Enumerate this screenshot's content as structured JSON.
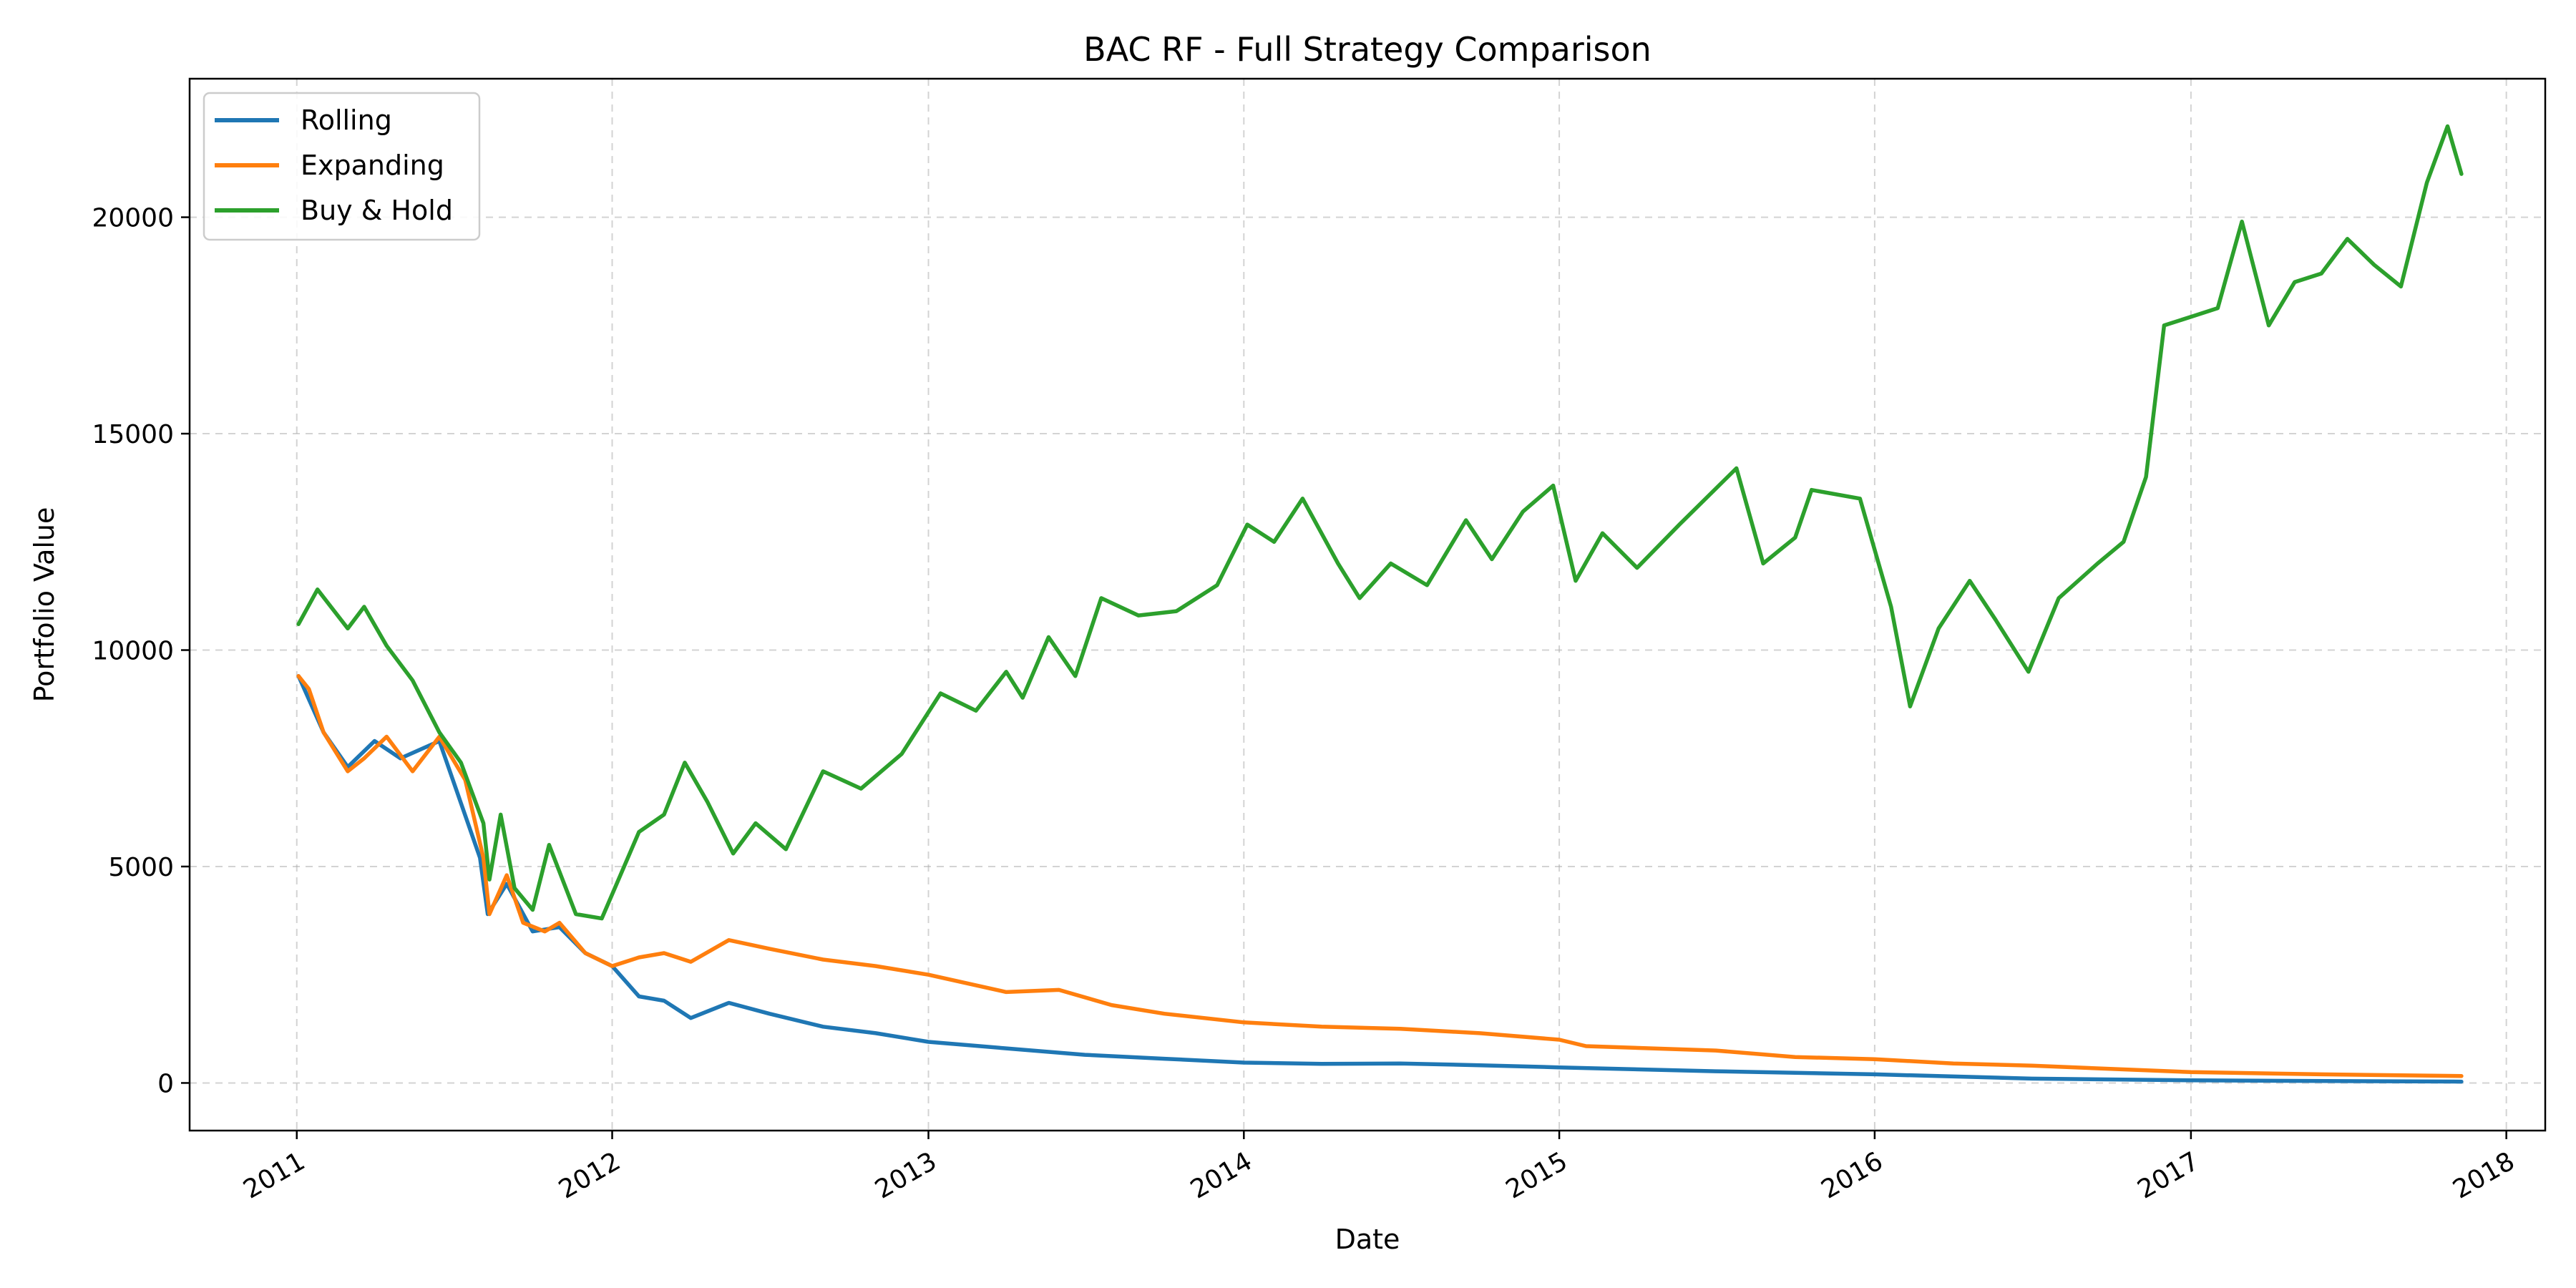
{
  "chart_data": {
    "type": "line",
    "title": "BAC RF - Full Strategy Comparison",
    "xlabel": "Date",
    "ylabel": "Portfolio Value",
    "x_ticks": [
      "2011",
      "2012",
      "2013",
      "2014",
      "2015",
      "2016",
      "2017",
      "2018"
    ],
    "y_ticks": [
      0,
      5000,
      10000,
      15000,
      20000
    ],
    "xlim": [
      "2010-08-30",
      "2018-02-15"
    ],
    "ylim": [
      -1100,
      23200
    ],
    "grid": true,
    "legend_position": "upper-left",
    "series": [
      {
        "name": "Rolling",
        "color": "#1f77b4",
        "points": [
          [
            "2011-01-03",
            9400
          ],
          [
            "2011-02-01",
            8100
          ],
          [
            "2011-03-01",
            7300
          ],
          [
            "2011-04-01",
            7900
          ],
          [
            "2011-05-01",
            7500
          ],
          [
            "2011-06-15",
            7900
          ],
          [
            "2011-08-01",
            5200
          ],
          [
            "2011-08-10",
            3900
          ],
          [
            "2011-09-01",
            4600
          ],
          [
            "2011-10-01",
            3500
          ],
          [
            "2011-11-01",
            3600
          ],
          [
            "2011-12-01",
            3000
          ],
          [
            "2012-01-01",
            2700
          ],
          [
            "2012-02-01",
            2000
          ],
          [
            "2012-03-01",
            1900
          ],
          [
            "2012-04-01",
            1500
          ],
          [
            "2012-05-15",
            1850
          ],
          [
            "2012-07-01",
            1600
          ],
          [
            "2012-09-01",
            1300
          ],
          [
            "2012-11-01",
            1150
          ],
          [
            "2013-01-01",
            950
          ],
          [
            "2013-04-01",
            800
          ],
          [
            "2013-07-01",
            650
          ],
          [
            "2013-10-01",
            560
          ],
          [
            "2014-01-01",
            470
          ],
          [
            "2014-04-01",
            440
          ],
          [
            "2014-07-01",
            450
          ],
          [
            "2014-10-01",
            410
          ],
          [
            "2015-01-01",
            360
          ],
          [
            "2015-07-01",
            270
          ],
          [
            "2016-01-01",
            200
          ],
          [
            "2016-07-01",
            100
          ],
          [
            "2017-01-01",
            60
          ],
          [
            "2017-11-10",
            30
          ]
        ]
      },
      {
        "name": "Expanding",
        "color": "#ff7f0e",
        "points": [
          [
            "2011-01-03",
            9400
          ],
          [
            "2011-01-15",
            9100
          ],
          [
            "2011-02-01",
            8100
          ],
          [
            "2011-03-01",
            7200
          ],
          [
            "2011-03-20",
            7500
          ],
          [
            "2011-04-15",
            8000
          ],
          [
            "2011-05-15",
            7200
          ],
          [
            "2011-06-15",
            8000
          ],
          [
            "2011-07-15",
            7000
          ],
          [
            "2011-08-05",
            5200
          ],
          [
            "2011-08-12",
            3900
          ],
          [
            "2011-09-01",
            4800
          ],
          [
            "2011-09-20",
            3700
          ],
          [
            "2011-10-15",
            3500
          ],
          [
            "2011-11-01",
            3700
          ],
          [
            "2011-12-01",
            3000
          ],
          [
            "2012-01-01",
            2700
          ],
          [
            "2012-02-01",
            2900
          ],
          [
            "2012-03-01",
            3000
          ],
          [
            "2012-04-01",
            2800
          ],
          [
            "2012-05-15",
            3300
          ],
          [
            "2012-07-01",
            3100
          ],
          [
            "2012-09-01",
            2850
          ],
          [
            "2012-11-01",
            2700
          ],
          [
            "2013-01-01",
            2500
          ],
          [
            "2013-04-01",
            2100
          ],
          [
            "2013-06-01",
            2150
          ],
          [
            "2013-08-01",
            1800
          ],
          [
            "2013-10-01",
            1600
          ],
          [
            "2014-01-01",
            1400
          ],
          [
            "2014-04-01",
            1300
          ],
          [
            "2014-07-01",
            1250
          ],
          [
            "2014-10-01",
            1150
          ],
          [
            "2015-01-01",
            1000
          ],
          [
            "2015-02-01",
            850
          ],
          [
            "2015-07-01",
            750
          ],
          [
            "2015-10-01",
            600
          ],
          [
            "2016-01-01",
            550
          ],
          [
            "2016-04-01",
            450
          ],
          [
            "2016-07-01",
            400
          ],
          [
            "2017-01-01",
            250
          ],
          [
            "2017-06-01",
            200
          ],
          [
            "2017-11-10",
            160
          ]
        ]
      },
      {
        "name": "Buy & Hold",
        "color": "#2ca02c",
        "points": [
          [
            "2011-01-03",
            10600
          ],
          [
            "2011-01-25",
            11400
          ],
          [
            "2011-03-01",
            10500
          ],
          [
            "2011-03-20",
            11000
          ],
          [
            "2011-04-15",
            10100
          ],
          [
            "2011-05-15",
            9300
          ],
          [
            "2011-06-15",
            8100
          ],
          [
            "2011-07-10",
            7400
          ],
          [
            "2011-08-05",
            6000
          ],
          [
            "2011-08-12",
            4700
          ],
          [
            "2011-08-25",
            6200
          ],
          [
            "2011-09-10",
            4500
          ],
          [
            "2011-10-01",
            4000
          ],
          [
            "2011-10-20",
            5500
          ],
          [
            "2011-11-20",
            3900
          ],
          [
            "2011-12-20",
            3800
          ],
          [
            "2012-02-01",
            5800
          ],
          [
            "2012-03-01",
            6200
          ],
          [
            "2012-03-25",
            7400
          ],
          [
            "2012-04-20",
            6500
          ],
          [
            "2012-05-20",
            5300
          ],
          [
            "2012-06-15",
            6000
          ],
          [
            "2012-07-20",
            5400
          ],
          [
            "2012-09-01",
            7200
          ],
          [
            "2012-10-15",
            6800
          ],
          [
            "2012-12-01",
            7600
          ],
          [
            "2013-01-15",
            9000
          ],
          [
            "2013-02-25",
            8600
          ],
          [
            "2013-04-01",
            9500
          ],
          [
            "2013-04-20",
            8900
          ],
          [
            "2013-05-20",
            10300
          ],
          [
            "2013-06-20",
            9400
          ],
          [
            "2013-07-20",
            11200
          ],
          [
            "2013-09-01",
            10800
          ],
          [
            "2013-10-15",
            10900
          ],
          [
            "2013-12-01",
            11500
          ],
          [
            "2014-01-05",
            12900
          ],
          [
            "2014-02-05",
            12500
          ],
          [
            "2014-03-10",
            13500
          ],
          [
            "2014-04-20",
            12000
          ],
          [
            "2014-05-15",
            11200
          ],
          [
            "2014-06-20",
            12000
          ],
          [
            "2014-08-01",
            11500
          ],
          [
            "2014-09-15",
            13000
          ],
          [
            "2014-10-15",
            12100
          ],
          [
            "2014-11-20",
            13200
          ],
          [
            "2014-12-25",
            13800
          ],
          [
            "2015-01-20",
            11600
          ],
          [
            "2015-02-20",
            12700
          ],
          [
            "2015-04-01",
            11900
          ],
          [
            "2015-05-20",
            12900
          ],
          [
            "2015-07-25",
            14200
          ],
          [
            "2015-08-25",
            12000
          ],
          [
            "2015-10-01",
            12600
          ],
          [
            "2015-10-20",
            13700
          ],
          [
            "2015-12-15",
            13500
          ],
          [
            "2016-01-20",
            11000
          ],
          [
            "2016-02-11",
            8700
          ],
          [
            "2016-03-15",
            10500
          ],
          [
            "2016-04-20",
            11600
          ],
          [
            "2016-05-20",
            10700
          ],
          [
            "2016-06-27",
            9500
          ],
          [
            "2016-08-01",
            11200
          ],
          [
            "2016-09-15",
            12000
          ],
          [
            "2016-10-15",
            12500
          ],
          [
            "2016-11-10",
            14000
          ],
          [
            "2016-12-01",
            17500
          ],
          [
            "2017-01-01",
            17700
          ],
          [
            "2017-02-01",
            17900
          ],
          [
            "2017-03-01",
            19900
          ],
          [
            "2017-04-01",
            17500
          ],
          [
            "2017-05-01",
            18500
          ],
          [
            "2017-06-01",
            18700
          ],
          [
            "2017-07-01",
            19500
          ],
          [
            "2017-08-01",
            18900
          ],
          [
            "2017-09-01",
            18400
          ],
          [
            "2017-10-01",
            20800
          ],
          [
            "2017-10-25",
            22100
          ],
          [
            "2017-11-10",
            21000
          ]
        ]
      }
    ]
  }
}
